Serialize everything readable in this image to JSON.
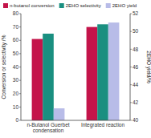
{
  "chart_data": {
    "type": "bar",
    "categories": [
      "n-Butanol Guerbet condensation",
      "Integrated reaction"
    ],
    "series": [
      {
        "name": "n-butanol conversion",
        "color": "#c4144a",
        "values": [
          61,
          70
        ]
      },
      {
        "name": "2EHO selectivity",
        "color": "#1a8f80",
        "values": [
          65,
          72
        ]
      },
      {
        "name": "2EHO yield",
        "color": "#b8bce8",
        "values": [
          9,
          null
        ]
      },
      {
        "name": "2EHO yield",
        "color": "#b8bce8",
        "values": [
          null,
          51
        ],
        "axis": "y2"
      }
    ],
    "ylabel": "Conversion or selectivity /%",
    "y2label": "2EHO yield/%",
    "ylim": [
      0,
      80
    ],
    "yticks": [
      0,
      10,
      20,
      30,
      40,
      50,
      60,
      70,
      80
    ],
    "y2lim": [
      40,
      52
    ],
    "y2ticks": [
      40,
      42,
      44,
      46,
      48,
      50,
      52
    ],
    "grid": false,
    "legend": "upper left"
  }
}
